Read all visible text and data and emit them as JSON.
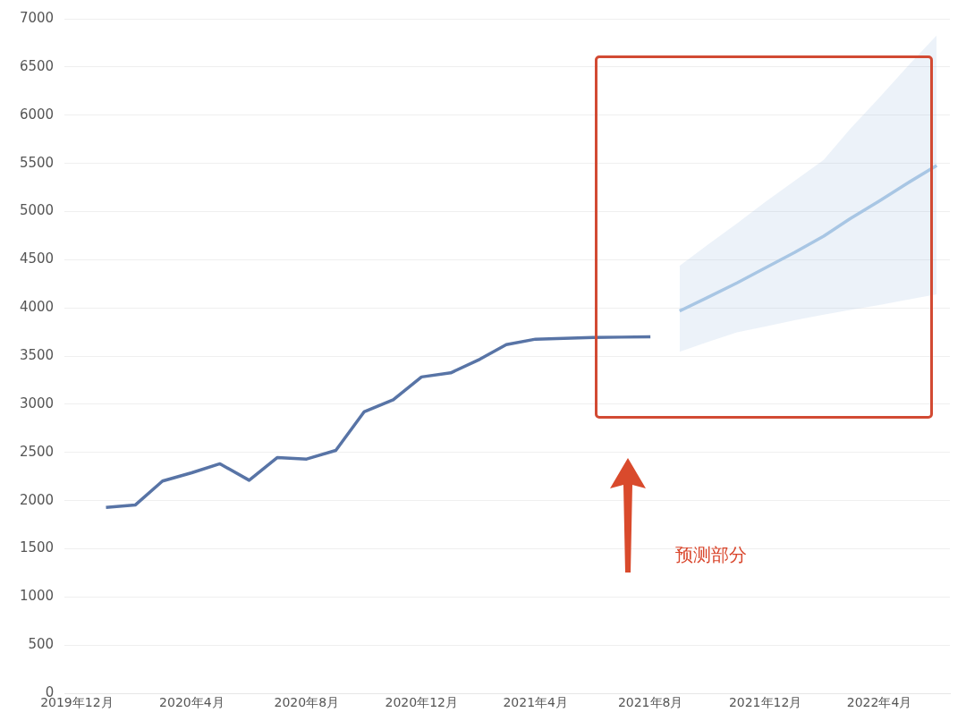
{
  "chart_data": {
    "type": "line",
    "legend": false,
    "grid": "y",
    "marker": "none",
    "line_style": "solid",
    "xlim": [
      "2019-11-18",
      "2022-06-15"
    ],
    "xticks": [
      {
        "value": "2019-12",
        "label": "2019年12月"
      },
      {
        "value": "2020-04",
        "label": "2020年4月"
      },
      {
        "value": "2020-08",
        "label": "2020年8月"
      },
      {
        "value": "2020-12",
        "label": "2020年12月"
      },
      {
        "value": "2021-04",
        "label": "2021年4月"
      },
      {
        "value": "2021-08",
        "label": "2021年8月"
      },
      {
        "value": "2021-12",
        "label": "2021年12月"
      },
      {
        "value": "2022-04",
        "label": "2022年4月"
      }
    ],
    "ylim": [
      0,
      7000
    ],
    "yticks": [
      0,
      500,
      1000,
      1500,
      2000,
      2500,
      3000,
      3500,
      4000,
      4500,
      5000,
      5500,
      6000,
      6500,
      7000
    ],
    "series": [
      {
        "color": "#5874a6",
        "x": [
          "2020-01",
          "2020-02",
          "2020-03",
          "2020-04",
          "2020-05",
          "2020-06",
          "2020-07",
          "2020-08",
          "2020-09",
          "2020-10",
          "2020-11",
          "2020-12",
          "2021-01",
          "2021-02",
          "2021-03",
          "2021-04",
          "2021-05",
          "2021-06",
          "2021-07",
          "2021-08"
        ],
        "values": [
          1930,
          1955,
          2204,
          2290,
          2383,
          2212,
          2448,
          2432,
          2522,
          2921,
          3048,
          3284,
          3326,
          3468,
          3619,
          3676,
          3684,
          3693,
          3697,
          3701
        ]
      },
      {
        "color": "#a8c6e4",
        "x": [
          "2021-09",
          "2021-10",
          "2021-11",
          "2021-12",
          "2022-01",
          "2022-02",
          "2022-03",
          "2022-04",
          "2022-05",
          "2022-06"
        ],
        "values": [
          3968,
          4110,
          4260,
          4415,
          4575,
          4745,
          4925,
          5110,
          5295,
          5478
        ],
        "lower": [
          3546,
          3646,
          3746,
          3807,
          3872,
          3930,
          3980,
          4030,
          4085,
          4141
        ],
        "upper": [
          4437,
          4657,
          4877,
          5099,
          5317,
          5535,
          5856,
          6180,
          6505,
          6829
        ]
      }
    ],
    "annotations": [
      "预测部分"
    ]
  }
}
